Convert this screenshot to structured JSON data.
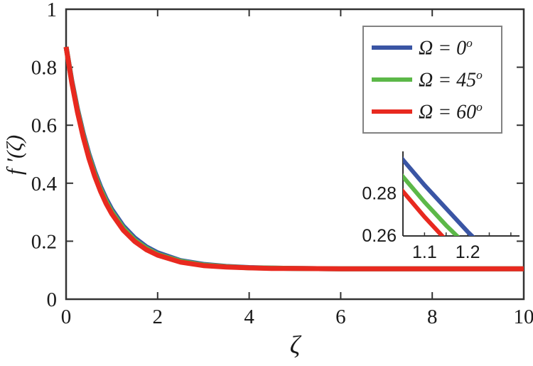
{
  "colors": {
    "axis": "#333333",
    "text": "#1a1a1a",
    "legend_border": "#828282",
    "background": "#ffffff"
  },
  "chart_data": {
    "type": "line",
    "title": "",
    "xlabel": "ζ",
    "ylabel": "f ′(ζ)",
    "xlim": [
      0,
      10
    ],
    "ylim": [
      0,
      1
    ],
    "xticks": [
      0,
      2,
      4,
      6,
      8,
      10
    ],
    "xtick_labels": [
      "0",
      "2",
      "4",
      "6",
      "8",
      "10"
    ],
    "yticks": [
      0,
      0.2,
      0.4,
      0.6,
      0.8,
      1
    ],
    "ytick_labels": [
      "0",
      "0.2",
      "0.4",
      "0.6",
      "0.8",
      "1"
    ],
    "grid": false,
    "legend_position": "upper right",
    "x": [
      0,
      0.125,
      0.25,
      0.375,
      0.5,
      0.625,
      0.75,
      0.875,
      1,
      1.25,
      1.5,
      1.75,
      2,
      2.5,
      3,
      3.5,
      4,
      4.5,
      5,
      6,
      7,
      8,
      9,
      10
    ],
    "series": [
      {
        "name": "Ω = 0°",
        "color": "#3A55A4",
        "values": [
          0.87,
          0.754,
          0.655,
          0.571,
          0.5,
          0.44,
          0.389,
          0.346,
          0.309,
          0.252,
          0.211,
          0.181,
          0.16,
          0.133,
          0.12,
          0.113,
          0.109,
          0.107,
          0.106,
          0.105,
          0.105,
          0.105,
          0.105,
          0.105
        ]
      },
      {
        "name": "Ω = 45°",
        "color": "#5CB848",
        "values": [
          0.87,
          0.75,
          0.65,
          0.564,
          0.493,
          0.432,
          0.381,
          0.338,
          0.301,
          0.245,
          0.204,
          0.176,
          0.155,
          0.131,
          0.118,
          0.112,
          0.108,
          0.107,
          0.106,
          0.105,
          0.105,
          0.105,
          0.105,
          0.105
        ]
      },
      {
        "name": "Ω = 60°",
        "color": "#E8291F",
        "values": [
          0.87,
          0.747,
          0.644,
          0.558,
          0.485,
          0.424,
          0.373,
          0.33,
          0.294,
          0.238,
          0.199,
          0.171,
          0.152,
          0.128,
          0.116,
          0.111,
          0.108,
          0.106,
          0.106,
          0.105,
          0.105,
          0.105,
          0.105,
          0.105
        ]
      }
    ],
    "inset": {
      "xlim": [
        1.05,
        1.32
      ],
      "ylim": [
        0.26,
        0.3
      ],
      "xticks": [
        1.05,
        1.1,
        1.15,
        1.2,
        1.25,
        1.3
      ],
      "xtick_labels": [
        {
          "value": 1.1,
          "label": "1.1"
        },
        {
          "value": 1.2,
          "label": "1.2"
        }
      ],
      "yticks": [
        0.26,
        0.28
      ],
      "ytick_labels": [
        {
          "value": 0.26,
          "label": "0.26"
        },
        {
          "value": 0.28,
          "label": "0.28"
        }
      ],
      "x": [
        1.0,
        1.05,
        1.1,
        1.15,
        1.2,
        1.25,
        1.3
      ],
      "series": [
        {
          "name": "Ω = 0°",
          "color": "#3A55A4",
          "values": [
            0.309,
            0.296,
            0.284,
            0.273,
            0.262,
            0.252,
            0.243
          ]
        },
        {
          "name": "Ω = 45°",
          "color": "#5CB848",
          "values": [
            0.301,
            0.288,
            0.276,
            0.265,
            0.255,
            0.245,
            0.236
          ]
        },
        {
          "name": "Ω = 60°",
          "color": "#E8291F",
          "values": [
            0.294,
            0.281,
            0.269,
            0.258,
            0.248,
            0.238,
            0.229
          ]
        }
      ]
    }
  },
  "legend": {
    "items": [
      {
        "label": "Ω = 0",
        "sup": "o",
        "color": "#3A55A4"
      },
      {
        "label": "Ω = 45",
        "sup": "o",
        "color": "#5CB848"
      },
      {
        "label": "Ω = 60",
        "sup": "o",
        "color": "#E8291F"
      }
    ]
  }
}
